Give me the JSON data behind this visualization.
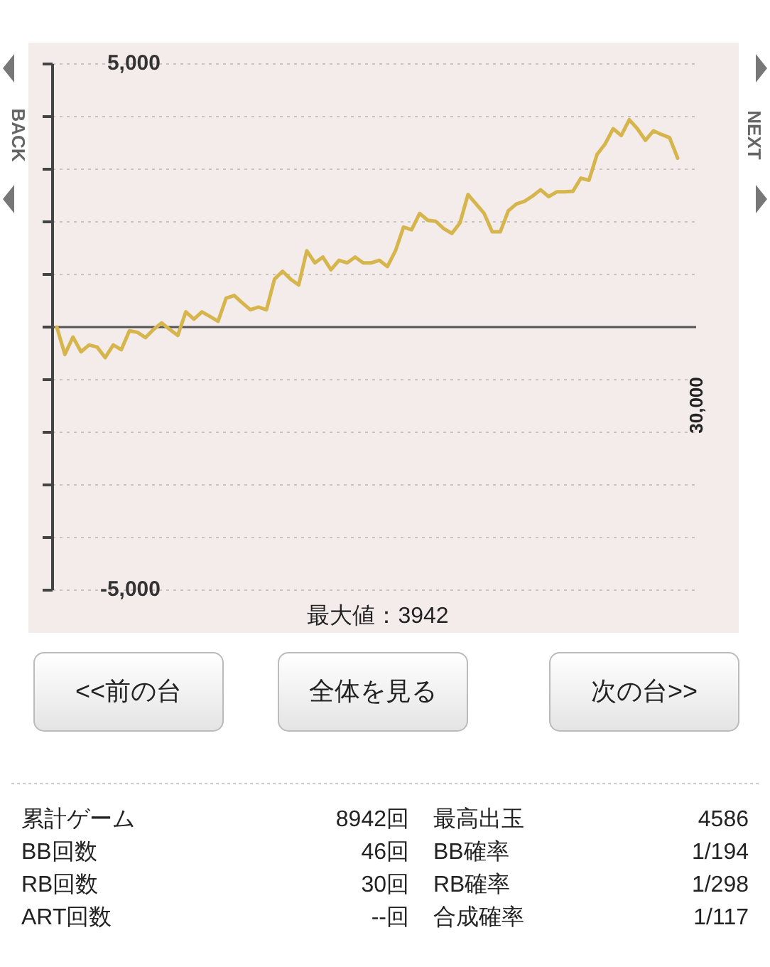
{
  "chart_data": {
    "type": "line",
    "categories": [
      null,
      null,
      null,
      null,
      null,
      null,
      null,
      null,
      null,
      null,
      null,
      null,
      null,
      null,
      null,
      null,
      null,
      null,
      null,
      null,
      null,
      null,
      null,
      null,
      null,
      null,
      null,
      null,
      null,
      null,
      null,
      null,
      null,
      null,
      null,
      null,
      null,
      null,
      null,
      null,
      null,
      null,
      null,
      null,
      null,
      null,
      null,
      null,
      null,
      null,
      null,
      null,
      null,
      null,
      null,
      null,
      null,
      null,
      null,
      null,
      null,
      null,
      null,
      null,
      null,
      null,
      null,
      null,
      null,
      null,
      null,
      null,
      null,
      null,
      null,
      null,
      null,
      null
    ],
    "series": [
      {
        "color": "#d6b54c",
        "values": [
          0,
          -520,
          -190,
          -470,
          -340,
          -380,
          -580,
          -340,
          -430,
          -70,
          -100,
          -200,
          -45,
          80,
          -45,
          -160,
          290,
          150,
          290,
          200,
          110,
          550,
          600,
          460,
          330,
          380,
          330,
          910,
          1060,
          910,
          800,
          1450,
          1220,
          1330,
          1090,
          1270,
          1220,
          1330,
          1220,
          1220,
          1270,
          1150,
          1450,
          1900,
          1850,
          2160,
          2030,
          2010,
          1870,
          1780,
          1980,
          2520,
          2340,
          2160,
          1810,
          1810,
          2210,
          2340,
          2390,
          2490,
          2610,
          2480,
          2570,
          2570,
          2580,
          2830,
          2790,
          3280,
          3480,
          3770,
          3640,
          3942,
          3770,
          3550,
          3730,
          3660,
          3600,
          3210
        ]
      }
    ],
    "ylim": [
      -5000,
      5000
    ],
    "yticks": [
      {
        "value": 5000,
        "label": "5,000"
      },
      {
        "value": 4000,
        "label": null
      },
      {
        "value": 3000,
        "label": null
      },
      {
        "value": 2000,
        "label": null
      },
      {
        "value": 1000,
        "label": null
      },
      {
        "value": 0,
        "label": null
      },
      {
        "value": -1000,
        "label": null
      },
      {
        "value": -2000,
        "label": null
      },
      {
        "value": -3000,
        "label": null
      },
      {
        "value": -4000,
        "label": null
      },
      {
        "value": -5000,
        "label": "-5,000"
      }
    ],
    "grid": "y",
    "marker": "none",
    "line_style": "solid",
    "ref_lines": [
      {
        "axis": "y",
        "value": 0,
        "color": "#555555"
      }
    ],
    "annotations": [
      "最大値：3942",
      "30,000",
      "BACK",
      "NEXT",
      "<<前の台",
      "全体を見る",
      "次の台>>",
      "累計ゲーム",
      "8942回",
      "最高出玉",
      "4586",
      "BB回数",
      "46回",
      "BB確率",
      "1/194",
      "RB回数",
      "30回",
      "RB確率",
      "1/298",
      "ART回数",
      "--回",
      "合成確率",
      "1/117"
    ]
  }
}
